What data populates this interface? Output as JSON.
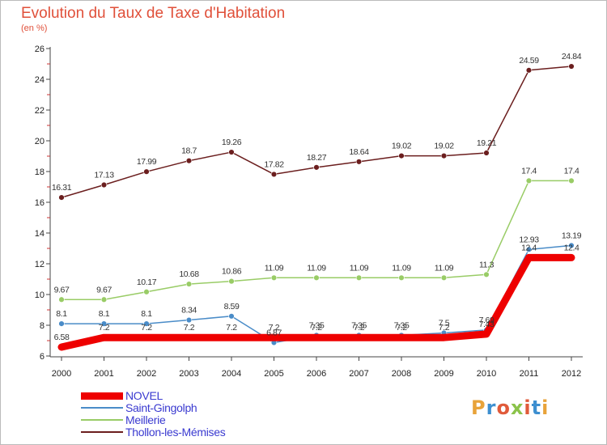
{
  "title": "Evolution du Taux de Taxe d'Habitation",
  "subtitle": "(en %)",
  "logo": {
    "text": "Proxiti",
    "colors": [
      "#e8a33a",
      "#3d8fd0",
      "#e05a3a",
      "#8bc34a",
      "#e05a3a",
      "#3d8fd0",
      "#e8a33a"
    ]
  },
  "chart_data": {
    "type": "line",
    "title": "Evolution du Taux de Taxe d'Habitation",
    "ylabel": "(en %)",
    "x": [
      "2000",
      "2001",
      "2002",
      "2003",
      "2004",
      "2005",
      "2006",
      "2007",
      "2008",
      "2009",
      "2010",
      "2011",
      "2012"
    ],
    "ylim": [
      6,
      26
    ],
    "yticks": [
      "6",
      "8",
      "10",
      "12",
      "14",
      "16",
      "18",
      "20",
      "22",
      "24",
      "26"
    ],
    "grid": false,
    "legend": "bottom-left",
    "series": [
      {
        "name": "NOVEL",
        "color": "#ee0000",
        "values": [
          6.58,
          7.2,
          7.2,
          7.2,
          7.2,
          7.2,
          7.2,
          7.2,
          7.2,
          7.2,
          7.43,
          12.4,
          12.4
        ],
        "labels": [
          "6.58",
          "7.2",
          "7.2",
          "7.2",
          "7.2",
          "7.2",
          "7.2",
          "7.2",
          "7.2",
          "7.2",
          "7.43",
          "12.4",
          "12.4"
        ]
      },
      {
        "name": "Saint-Gingolph",
        "color": "#4a8cc8",
        "values": [
          8.1,
          8.1,
          8.1,
          8.34,
          8.59,
          6.87,
          7.35,
          7.35,
          7.35,
          7.5,
          7.69,
          12.93,
          13.19
        ],
        "labels": [
          "8.1",
          "8.1",
          "8.1",
          "8.34",
          "8.59",
          "6.87",
          "7.35",
          "7.35",
          "7.35",
          "7.5",
          "7.69",
          "12.93",
          "13.19"
        ]
      },
      {
        "name": "Meillerie",
        "color": "#99cc66",
        "values": [
          9.67,
          9.67,
          10.17,
          10.68,
          10.86,
          11.09,
          11.09,
          11.09,
          11.09,
          11.09,
          11.3,
          17.4,
          17.4
        ],
        "labels": [
          "9.67",
          "9.67",
          "10.17",
          "10.68",
          "10.86",
          "11.09",
          "11.09",
          "11.09",
          "11.09",
          "11.09",
          "11.3",
          "17.4",
          "17.4"
        ]
      },
      {
        "name": "Thollon-les-Mémises",
        "color": "#6b1e1e",
        "values": [
          16.31,
          17.13,
          17.99,
          18.7,
          19.26,
          17.82,
          18.27,
          18.64,
          19.02,
          19.02,
          19.21,
          24.59,
          24.84
        ],
        "labels": [
          "16.31",
          "17.13",
          "17.99",
          "18.7",
          "19.26",
          "17.82",
          "18.27",
          "18.64",
          "19.02",
          "19.02",
          "19.21",
          "24.59",
          "24.84"
        ]
      }
    ]
  }
}
